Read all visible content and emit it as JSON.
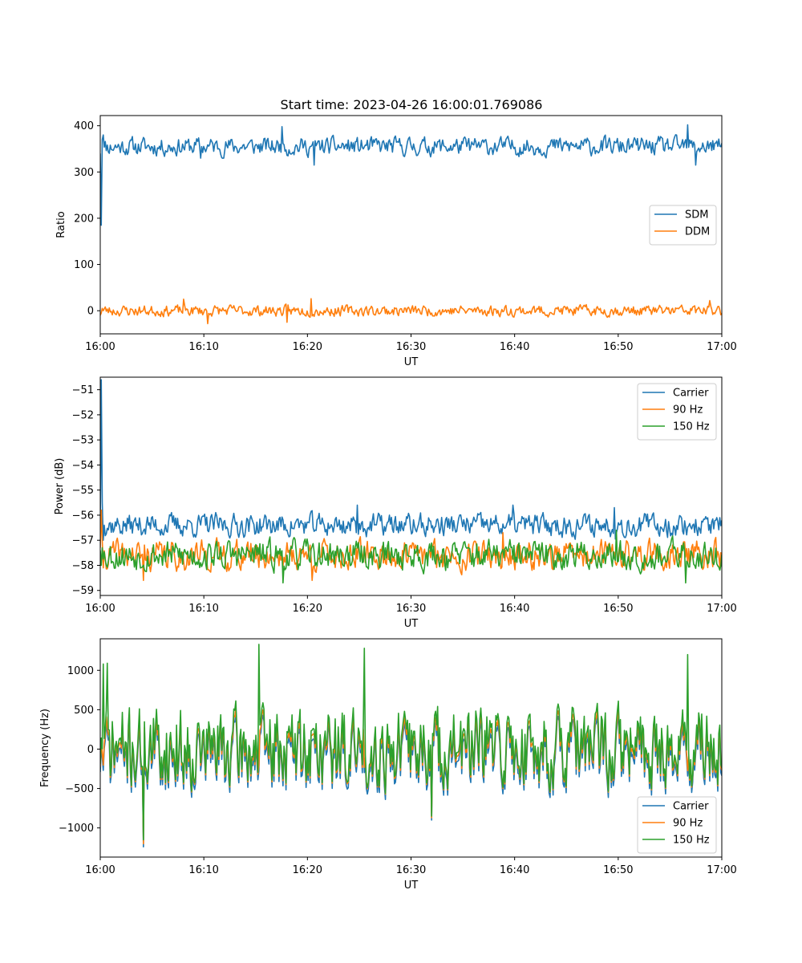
{
  "figure": {
    "title": "Start time: 2023-04-26 16:00:01.769086"
  },
  "colors": {
    "blue": "#1f77b4",
    "orange": "#ff7f0e",
    "green": "#2ca02c"
  },
  "chart_data": [
    {
      "type": "line",
      "title": "Start time: 2023-04-26 16:00:01.769086",
      "xlabel": "UT",
      "ylabel": "Ratio",
      "xlim": [
        "16:00",
        "17:00"
      ],
      "ylim": [
        -50,
        422
      ],
      "x_ticks": [
        "16:00",
        "16:10",
        "16:20",
        "16:30",
        "16:40",
        "16:50",
        "17:00"
      ],
      "y_ticks": [
        0,
        100,
        200,
        300,
        400
      ],
      "legend_position": "center-right",
      "series": [
        {
          "name": "SDM",
          "color": "#1f77b4",
          "base": 355,
          "amplitude": 15,
          "seed": 11,
          "first_points": [
            340,
            185,
            370,
            380
          ],
          "points": [
            [
              "16:17:30",
              398
            ],
            [
              "16:56:40",
              402
            ],
            [
              "16:09:40",
              330
            ],
            [
              "16:20:40",
              315
            ],
            [
              "16:57:30",
              315
            ]
          ]
        },
        {
          "name": "DDM",
          "color": "#ff7f0e",
          "base": 0,
          "amplitude": 9,
          "seed": 23,
          "first_points": [
            -10,
            -5,
            5,
            0
          ],
          "points": [
            [
              "16:08:00",
              25
            ],
            [
              "16:20:20",
              26
            ],
            [
              "16:58:50",
              22
            ],
            [
              "16:10:20",
              -28
            ],
            [
              "16:18:00",
              -25
            ]
          ]
        }
      ]
    },
    {
      "type": "line",
      "xlabel": "UT",
      "ylabel": "Power (dB)",
      "xlim": [
        "16:00",
        "17:00"
      ],
      "ylim": [
        -59.2,
        -50.5
      ],
      "x_ticks": [
        "16:00",
        "16:10",
        "16:20",
        "16:30",
        "16:40",
        "16:50",
        "17:00"
      ],
      "y_ticks": [
        -59,
        -58,
        -57,
        -56,
        -55,
        -54,
        -53,
        -52,
        -51
      ],
      "legend_position": "upper-right",
      "series": [
        {
          "name": "Carrier",
          "color": "#1f77b4",
          "base": -56.4,
          "amplitude": 0.35,
          "seed": 37,
          "first_points": [
            -56.8,
            -50.6,
            -55.5,
            -57.0,
            -56.4
          ],
          "points": [
            [
              "16:24:50",
              -55.6
            ],
            [
              "16:39:50",
              -55.6
            ],
            [
              "16:49:40",
              -55.7
            ]
          ]
        },
        {
          "name": "90 Hz",
          "color": "#ff7f0e",
          "base": -57.6,
          "amplitude": 0.45,
          "seed": 41,
          "first_points": [
            -57.3,
            -55.8,
            -57.0,
            -58.1
          ],
          "points": [
            [
              "16:04:10",
              -58.6
            ],
            [
              "16:20:30",
              -58.6
            ],
            [
              "16:38:50",
              -56.7
            ]
          ]
        },
        {
          "name": "150 Hz",
          "color": "#2ca02c",
          "base": -57.6,
          "amplitude": 0.45,
          "seed": 53,
          "first_points": [
            -57.4,
            -58.0,
            -57.3
          ],
          "points": [
            [
              "16:17:40",
              -58.7
            ],
            [
              "16:49:50",
              -56.6
            ],
            [
              "16:56:30",
              -58.7
            ]
          ]
        }
      ]
    },
    {
      "type": "line",
      "xlabel": "UT",
      "ylabel": "Frequency (Hz)",
      "xlim": [
        "16:00",
        "17:00"
      ],
      "ylim": [
        -1370,
        1400
      ],
      "x_ticks": [
        "16:00",
        "16:10",
        "16:20",
        "16:30",
        "16:40",
        "16:50",
        "17:00"
      ],
      "y_ticks": [
        -1000,
        -500,
        0,
        500,
        1000
      ],
      "legend_position": "lower-right",
      "series": [
        {
          "name": "Carrier",
          "color": "#1f77b4",
          "base": -40,
          "amplitude": 340,
          "seed": 71,
          "follow": 2,
          "offset": -60,
          "points": [
            [
              "16:04:10",
              -1240
            ],
            [
              "16:32:00",
              -900
            ]
          ]
        },
        {
          "name": "90 Hz",
          "color": "#ff7f0e",
          "base": 0,
          "amplitude": 340,
          "seed": 71,
          "follow": 2,
          "offset": -30,
          "points": [
            [
              "16:04:10",
              -1200
            ],
            [
              "16:32:00",
              -870
            ]
          ]
        },
        {
          "name": "150 Hz",
          "color": "#2ca02c",
          "base": 20,
          "amplitude": 340,
          "seed": 71,
          "follow": -1,
          "offset": 0,
          "points": [
            [
              "16:15:20",
              1330
            ],
            [
              "16:25:30",
              1280
            ],
            [
              "16:04:10",
              -1150
            ],
            [
              "16:00:20",
              1080
            ],
            [
              "16:00:40",
              1090
            ],
            [
              "16:56:40",
              1200
            ],
            [
              "16:32:00",
              -850
            ]
          ]
        }
      ]
    }
  ]
}
